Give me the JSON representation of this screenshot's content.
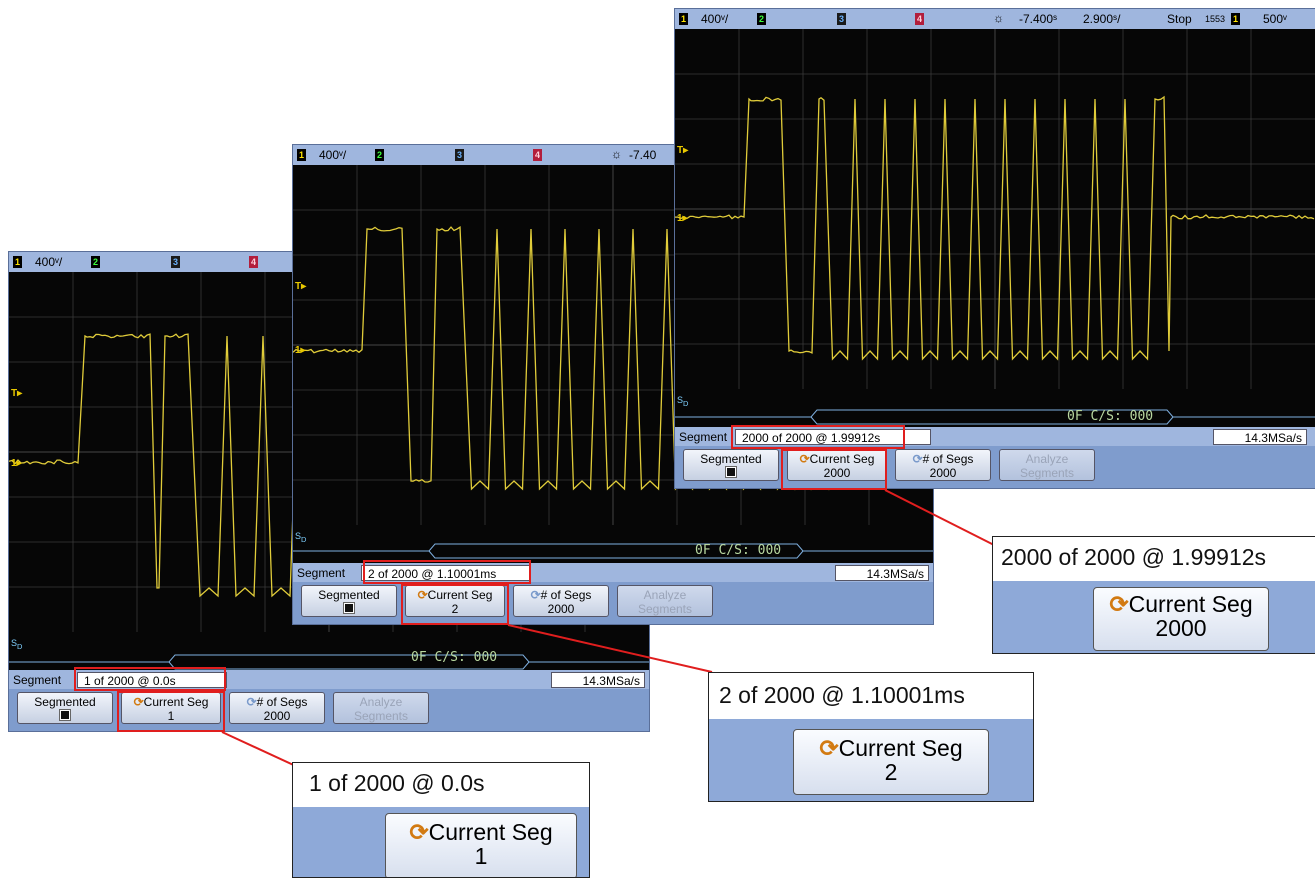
{
  "scopes": [
    {
      "id": "s1",
      "ch1_label": "1",
      "ch1_scale": "400ᵛ/",
      "ch2_label": "2",
      "ch3_label": "3",
      "ch4_label": "4",
      "segment_label": "Segment",
      "segment_value": "1 of 2000 @ 0.0s",
      "sample_rate": "14.3MSa/s",
      "decode_text": "0F C/S: 000",
      "btn_segmented": "Segmented",
      "btn_current_seg": "Current Seg",
      "current_seg_value": "1",
      "btn_num_segs": "# of Segs",
      "num_segs_value": "2000",
      "btn_analyze_1": "Analyze",
      "btn_analyze_2": "Segments"
    },
    {
      "id": "s2",
      "ch1_label": "1",
      "ch1_scale": "400ᵛ/",
      "ch2_label": "2",
      "ch3_label": "3",
      "ch4_label": "4",
      "time_offset": "-7.40",
      "segment_label": "Segment",
      "segment_value": "2 of 2000 @ 1.10001ms",
      "sample_rate": "14.3MSa/s",
      "decode_text": "0F C/S: 000",
      "btn_segmented": "Segmented",
      "btn_current_seg": "Current Seg",
      "current_seg_value": "2",
      "btn_num_segs": "# of Segs",
      "num_segs_value": "2000",
      "btn_analyze_1": "Analyze",
      "btn_analyze_2": "Segments"
    },
    {
      "id": "s3",
      "ch1_label": "1",
      "ch1_scale": "400ᵛ/",
      "ch2_label": "2",
      "ch3_label": "3",
      "ch4_label": "4",
      "time_offset": "-7.400ˢ",
      "time_scale": "2.900ˢ/",
      "run_state": "Stop",
      "trig_num": "1553",
      "trig_ch": "1",
      "trig_level": "500ᵛ",
      "segment_label": "Segment",
      "segment_value": "2000 of 2000 @ 1.99912s",
      "sample_rate": "14.3MSa/s",
      "decode_text": "0F C/S: 000",
      "btn_segmented": "Segmented",
      "btn_current_seg": "Current Seg",
      "current_seg_value": "2000",
      "btn_num_segs": "# of Segs",
      "num_segs_value": "2000",
      "btn_analyze_1": "Analyze",
      "btn_analyze_2": "Segments"
    }
  ],
  "zooms": [
    {
      "id": "z1",
      "segment_value": "1 of 2000 @ 0.0s",
      "btn_label": "Current Seg",
      "seg_value": "1"
    },
    {
      "id": "z2",
      "segment_value": "2 of 2000 @ 1.10001ms",
      "btn_label": "Current Seg",
      "seg_value": "2"
    },
    {
      "id": "z3",
      "segment_value": "2000 of 2000 @ 1.99912s",
      "btn_label": "Current Seg",
      "seg_value": "2000"
    }
  ],
  "colors": {
    "trace": "#e0cc3a",
    "grid": "#3a3a3a",
    "highlight": "#e01e1e",
    "panel": "#8eaad8"
  }
}
